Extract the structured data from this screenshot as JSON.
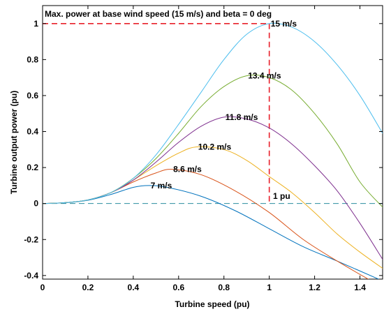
{
  "chart_data": {
    "type": "line",
    "title": "Max. power at base wind speed (15 m/s) and beta = 0 deg",
    "xlabel": "Turbine speed (pu)",
    "ylabel": "Turbine output power (pu)",
    "xlim": [
      0,
      1.5
    ],
    "ylim": [
      -0.42,
      1.1
    ],
    "xticks": [
      "0",
      "0.2",
      "0.4",
      "0.6",
      "0.8",
      "1",
      "1.2",
      "1.4"
    ],
    "yticks": [
      "-0.4",
      "-0.2",
      "0",
      "0.2",
      "0.4",
      "0.6",
      "0.8",
      "1"
    ],
    "grid": false,
    "annotation": "1 pu",
    "series": [
      {
        "name": "7 m/s",
        "color": "#0072BD",
        "x": [
          0,
          0.1,
          0.2,
          0.3,
          0.4,
          0.47,
          0.55,
          0.7,
          0.85,
          1.0,
          1.15,
          1.3,
          1.5
        ],
        "y": [
          0,
          0.004,
          0.018,
          0.05,
          0.09,
          0.1,
          0.09,
          0.04,
          -0.04,
          -0.14,
          -0.24,
          -0.32,
          -0.43
        ]
      },
      {
        "name": "8.6 m/s",
        "color": "#D95319",
        "x": [
          0,
          0.1,
          0.2,
          0.3,
          0.4,
          0.5,
          0.57,
          0.7,
          0.85,
          1.0,
          1.15,
          1.3,
          1.45
        ],
        "y": [
          0,
          0.005,
          0.02,
          0.06,
          0.12,
          0.17,
          0.19,
          0.16,
          0.07,
          -0.05,
          -0.2,
          -0.32,
          -0.43
        ]
      },
      {
        "name": "10.2 m/s",
        "color": "#EDB120",
        "x": [
          0,
          0.1,
          0.2,
          0.3,
          0.4,
          0.5,
          0.6,
          0.68,
          0.8,
          0.9,
          1.0,
          1.1,
          1.2,
          1.3,
          1.4,
          1.5
        ],
        "y": [
          0,
          0.005,
          0.02,
          0.06,
          0.13,
          0.21,
          0.28,
          0.315,
          0.3,
          0.24,
          0.15,
          0.06,
          -0.05,
          -0.17,
          -0.27,
          -0.36
        ]
      },
      {
        "name": "11.8 m/s",
        "color": "#7E2F8E",
        "x": [
          0,
          0.1,
          0.2,
          0.3,
          0.4,
          0.5,
          0.6,
          0.7,
          0.8,
          0.9,
          1.0,
          1.1,
          1.2,
          1.3,
          1.4,
          1.5
        ],
        "y": [
          0,
          0.005,
          0.02,
          0.06,
          0.13,
          0.23,
          0.34,
          0.43,
          0.48,
          0.47,
          0.42,
          0.33,
          0.21,
          0.07,
          -0.11,
          -0.31
        ]
      },
      {
        "name": "13.4 m/s",
        "color": "#77AC30",
        "x": [
          0,
          0.1,
          0.2,
          0.3,
          0.4,
          0.5,
          0.6,
          0.7,
          0.8,
          0.9,
          1.0,
          1.1,
          1.2,
          1.3,
          1.4,
          1.5
        ],
        "y": [
          0,
          0.005,
          0.02,
          0.06,
          0.14,
          0.25,
          0.39,
          0.54,
          0.65,
          0.71,
          0.7,
          0.63,
          0.5,
          0.33,
          0.12,
          -0.02
        ]
      },
      {
        "name": "15 m/s",
        "color": "#4DBEEE",
        "x": [
          0,
          0.1,
          0.2,
          0.3,
          0.4,
          0.5,
          0.6,
          0.7,
          0.8,
          0.9,
          1.0,
          1.1,
          1.2,
          1.3,
          1.4,
          1.5
        ],
        "y": [
          0,
          0.005,
          0.02,
          0.06,
          0.14,
          0.27,
          0.44,
          0.62,
          0.8,
          0.94,
          1.0,
          0.98,
          0.9,
          0.77,
          0.6,
          0.39
        ]
      }
    ],
    "reference_lines": {
      "max_power_y": 1.0,
      "base_speed_x": 1.0,
      "zero_y": 0,
      "max_line_color": "#E8202A",
      "zero_line_color": "#2A8D9E"
    }
  }
}
